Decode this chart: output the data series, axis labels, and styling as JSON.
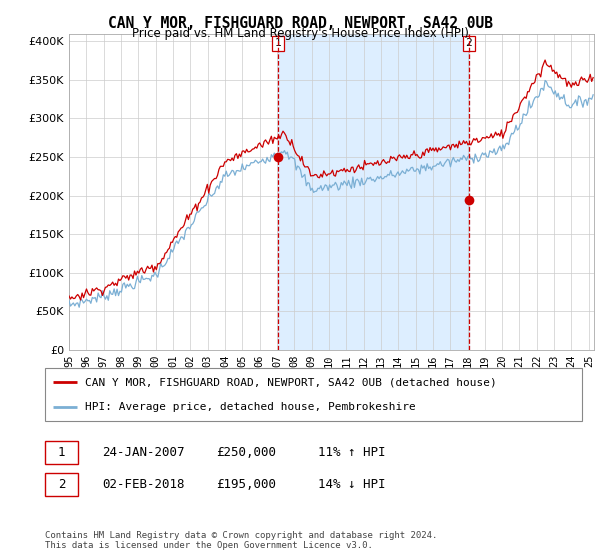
{
  "title": "CAN Y MOR, FISHGUARD ROAD, NEWPORT, SA42 0UB",
  "subtitle": "Price paid vs. HM Land Registry's House Price Index (HPI)",
  "red_label": "CAN Y MOR, FISHGUARD ROAD, NEWPORT, SA42 0UB (detached house)",
  "blue_label": "HPI: Average price, detached house, Pembrokeshire",
  "footnote": "Contains HM Land Registry data © Crown copyright and database right 2024.\nThis data is licensed under the Open Government Licence v3.0.",
  "point1_date": "24-JAN-2007",
  "point1_price": "£250,000",
  "point1_hpi": "11% ↑ HPI",
  "point2_date": "02-FEB-2018",
  "point2_price": "£195,000",
  "point2_hpi": "14% ↓ HPI",
  "ylim": [
    0,
    410000
  ],
  "yticks": [
    0,
    50000,
    100000,
    150000,
    200000,
    250000,
    300000,
    350000,
    400000
  ],
  "ytick_labels": [
    "£0",
    "£50K",
    "£100K",
    "£150K",
    "£200K",
    "£250K",
    "£300K",
    "£350K",
    "£400K"
  ],
  "red_color": "#cc0000",
  "blue_color": "#7bafd4",
  "shade_color": "#ddeeff",
  "vline_color": "#cc0000",
  "bg_color": "#ffffff",
  "grid_color": "#cccccc",
  "point1_x_year": 2007.08,
  "point2_x_year": 2018.08,
  "xmin": 1995,
  "xmax": 2025.3
}
